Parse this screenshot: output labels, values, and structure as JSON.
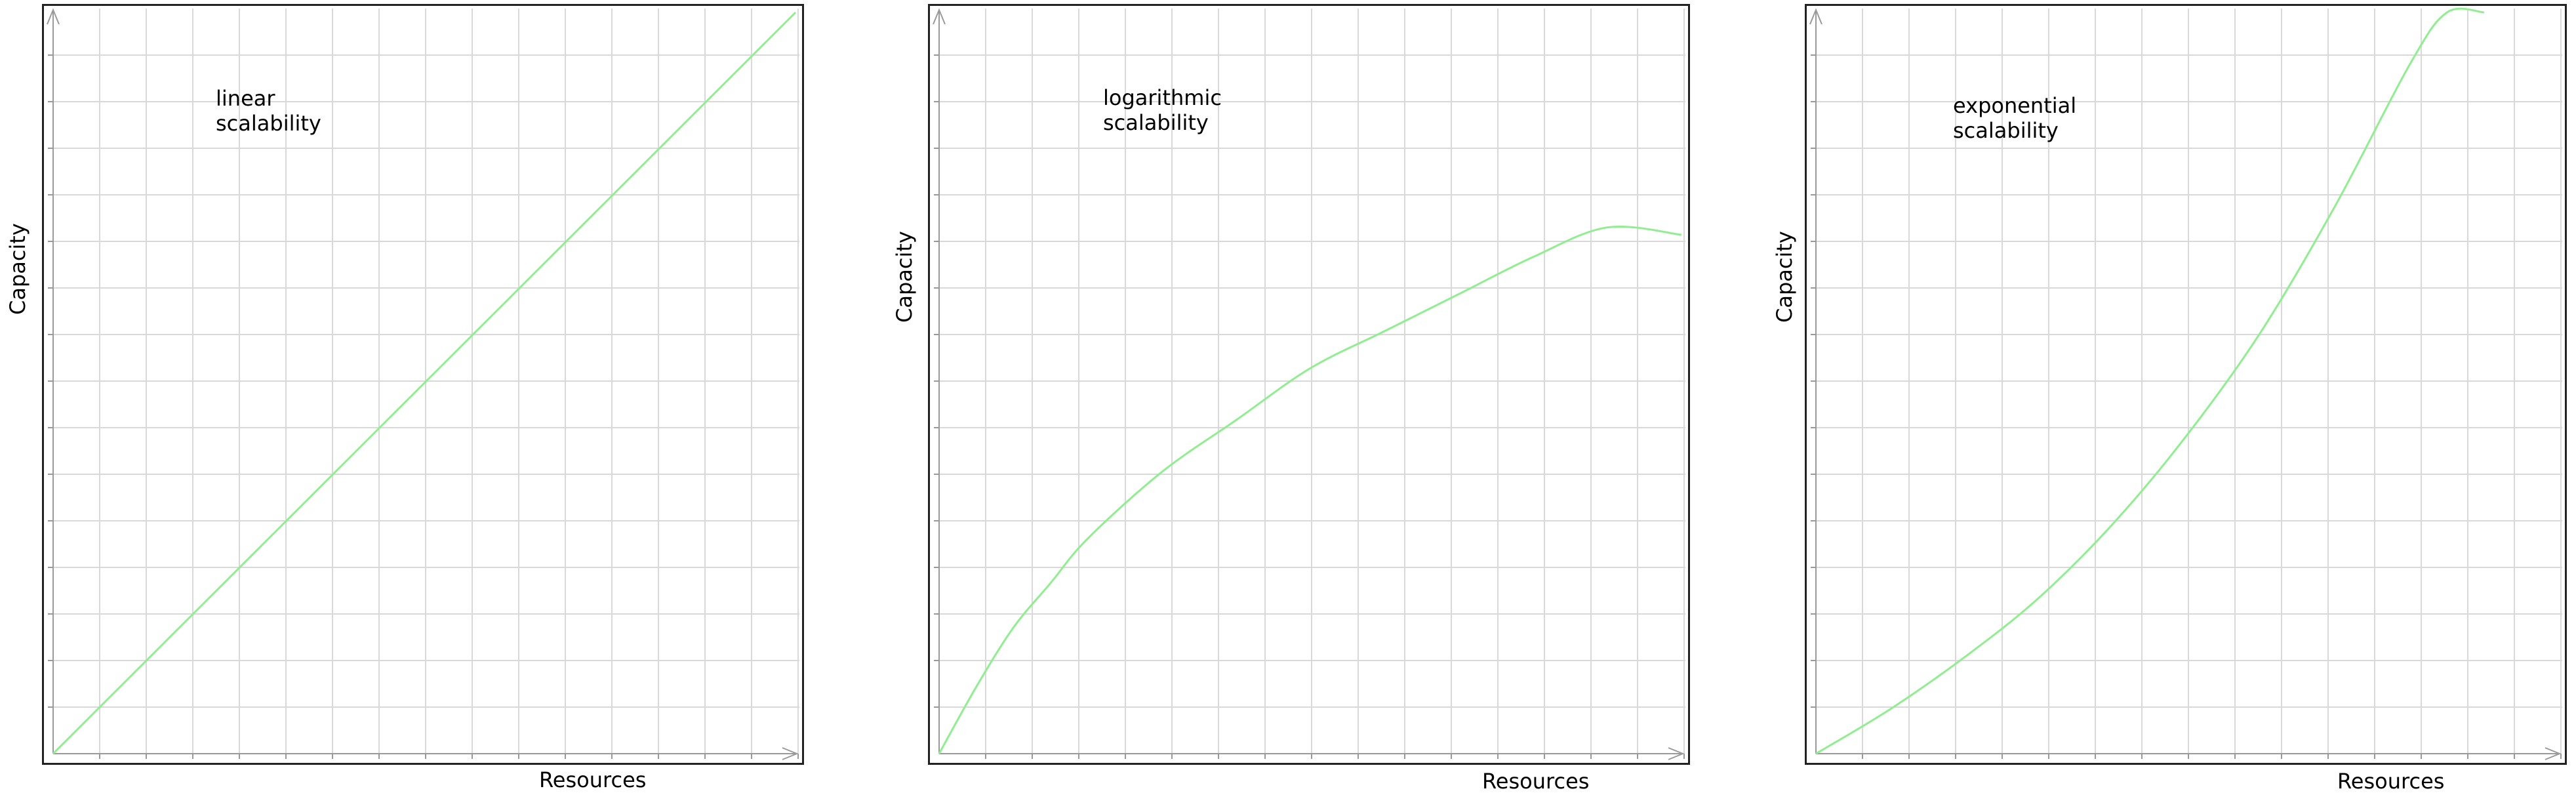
{
  "chart_data": [
    {
      "type": "line",
      "annotation": "linear\nscalability",
      "xlabel": "Resources",
      "ylabel": "Capacity",
      "grid": true,
      "xlim": [
        0,
        1
      ],
      "ylim": [
        0,
        1
      ],
      "series": [
        {
          "color": "#90ee90",
          "x": [
            0,
            0.1,
            0.2,
            0.3,
            0.4,
            0.5,
            0.6,
            0.7,
            0.8,
            0.9,
            1.0
          ],
          "y": [
            0,
            0.1,
            0.2,
            0.3,
            0.4,
            0.5,
            0.6,
            0.7,
            0.8,
            0.9,
            1.0
          ]
        }
      ]
    },
    {
      "type": "line",
      "annotation": "logarithmic\nscalability",
      "xlabel": "Resources",
      "ylabel": "Capacity",
      "grid": true,
      "xlim": [
        0,
        1
      ],
      "ylim": [
        0,
        1
      ],
      "series": [
        {
          "color": "#90ee90",
          "x": [
            0,
            0.05,
            0.1,
            0.15,
            0.2,
            0.3,
            0.4,
            0.5,
            0.6,
            0.7,
            0.8,
            0.9,
            1.0
          ],
          "y": [
            0,
            0.09,
            0.17,
            0.23,
            0.29,
            0.38,
            0.45,
            0.52,
            0.57,
            0.62,
            0.67,
            0.71,
            0.7
          ]
        }
      ]
    },
    {
      "type": "line",
      "annotation": "exponential\nscalability",
      "xlabel": "Resources",
      "ylabel": "Capacity",
      "grid": true,
      "xlim": [
        0,
        1
      ],
      "ylim": [
        0,
        1
      ],
      "series": [
        {
          "color": "#90ee90",
          "x": [
            0,
            0.1,
            0.2,
            0.3,
            0.4,
            0.5,
            0.6,
            0.7,
            0.8,
            0.85,
            0.9
          ],
          "y": [
            0,
            0.06,
            0.13,
            0.21,
            0.31,
            0.43,
            0.57,
            0.74,
            0.93,
            1.0,
            1.0
          ]
        }
      ]
    }
  ]
}
